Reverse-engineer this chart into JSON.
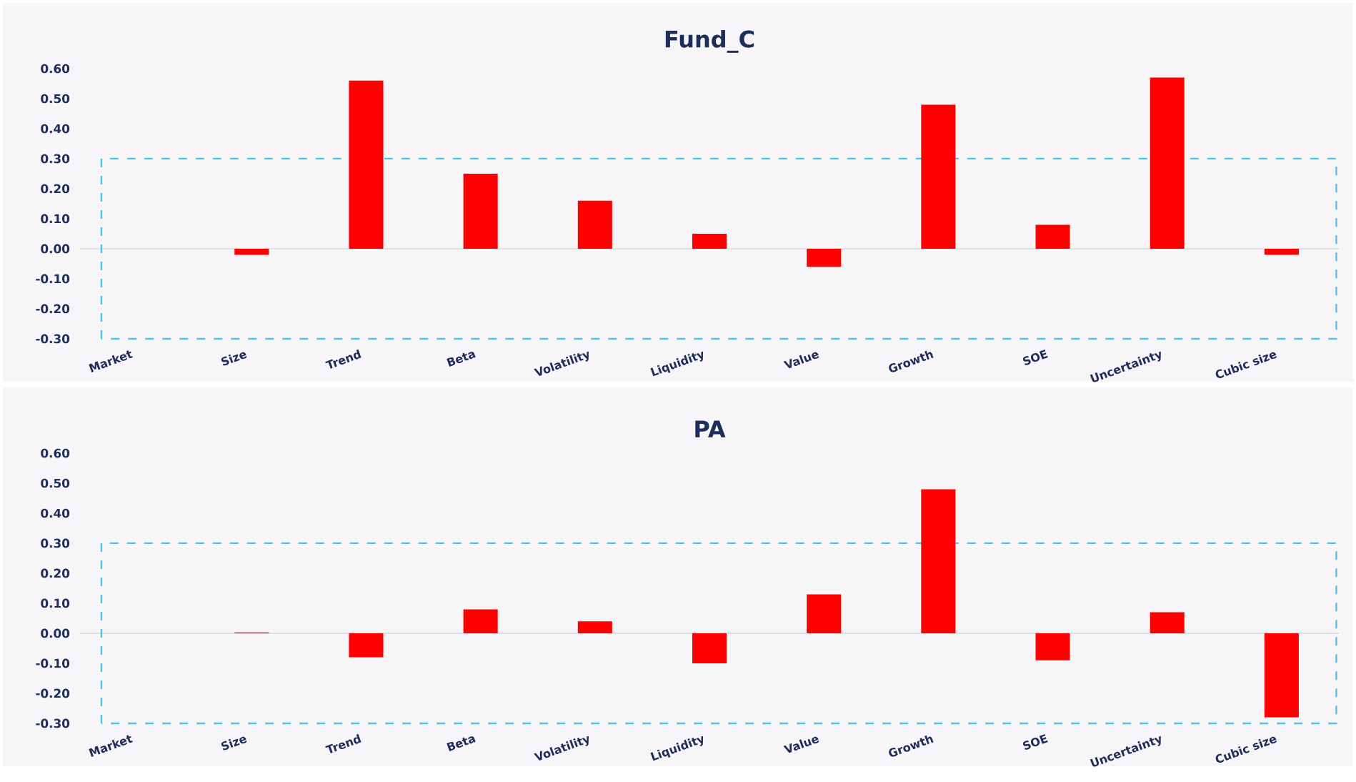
{
  "chart_data": [
    {
      "type": "bar",
      "title": "Fund_C",
      "categories": [
        "Market",
        "Size",
        "Trend",
        "Beta",
        "Volatility",
        "Liquidity",
        "Value",
        "Growth",
        "SOE",
        "Uncertainty",
        "Cubic size"
      ],
      "values": [
        0,
        -0.02,
        0.56,
        0.25,
        0.16,
        0.05,
        -0.06,
        0.48,
        0.08,
        0.57,
        -0.02
      ],
      "color": "#ff0000",
      "ylim": [
        -0.3,
        0.6
      ],
      "yticks": [
        {
          "value": -0.3,
          "label": "-0.30"
        },
        {
          "value": -0.2,
          "label": "-0.20"
        },
        {
          "value": -0.1,
          "label": "-0.10"
        },
        {
          "value": 0,
          "label": "0.00"
        },
        {
          "value": 0.1,
          "label": "0.10"
        },
        {
          "value": 0.2,
          "label": "0.20"
        },
        {
          "value": 0.3,
          "label": "0.30"
        },
        {
          "value": 0.4,
          "label": "0.40"
        },
        {
          "value": 0.5,
          "label": "0.50"
        },
        {
          "value": 0.6,
          "label": "0.60"
        }
      ],
      "ref_lines": [
        {
          "axis": "y",
          "value": 0,
          "color": "#e1dee4"
        }
      ]
    },
    {
      "type": "bar",
      "title": "PA",
      "categories": [
        "Market",
        "Size",
        "Trend",
        "Beta",
        "Volatility",
        "Liquidity",
        "Value",
        "Growth",
        "SOE",
        "Uncertainty",
        "Cubic size"
      ],
      "values": [
        0,
        0.003,
        -0.08,
        0.08,
        0.04,
        -0.1,
        0.13,
        0.48,
        -0.09,
        0.07,
        -0.28
      ],
      "color": "#ff0000",
      "ylim": [
        -0.3,
        0.6
      ],
      "yticks": [
        {
          "value": -0.3,
          "label": "-0.30"
        },
        {
          "value": -0.2,
          "label": "-0.20"
        },
        {
          "value": -0.1,
          "label": "-0.10"
        },
        {
          "value": 0,
          "label": "0.00"
        },
        {
          "value": 0.1,
          "label": "0.10"
        },
        {
          "value": 0.2,
          "label": "0.20"
        },
        {
          "value": 0.3,
          "label": "0.30"
        },
        {
          "value": 0.4,
          "label": "0.40"
        },
        {
          "value": 0.5,
          "label": "0.50"
        },
        {
          "value": 0.6,
          "label": "0.60"
        }
      ],
      "ref_lines": [
        {
          "axis": "y",
          "value": 0,
          "color": "#e1dee4"
        }
      ]
    }
  ]
}
